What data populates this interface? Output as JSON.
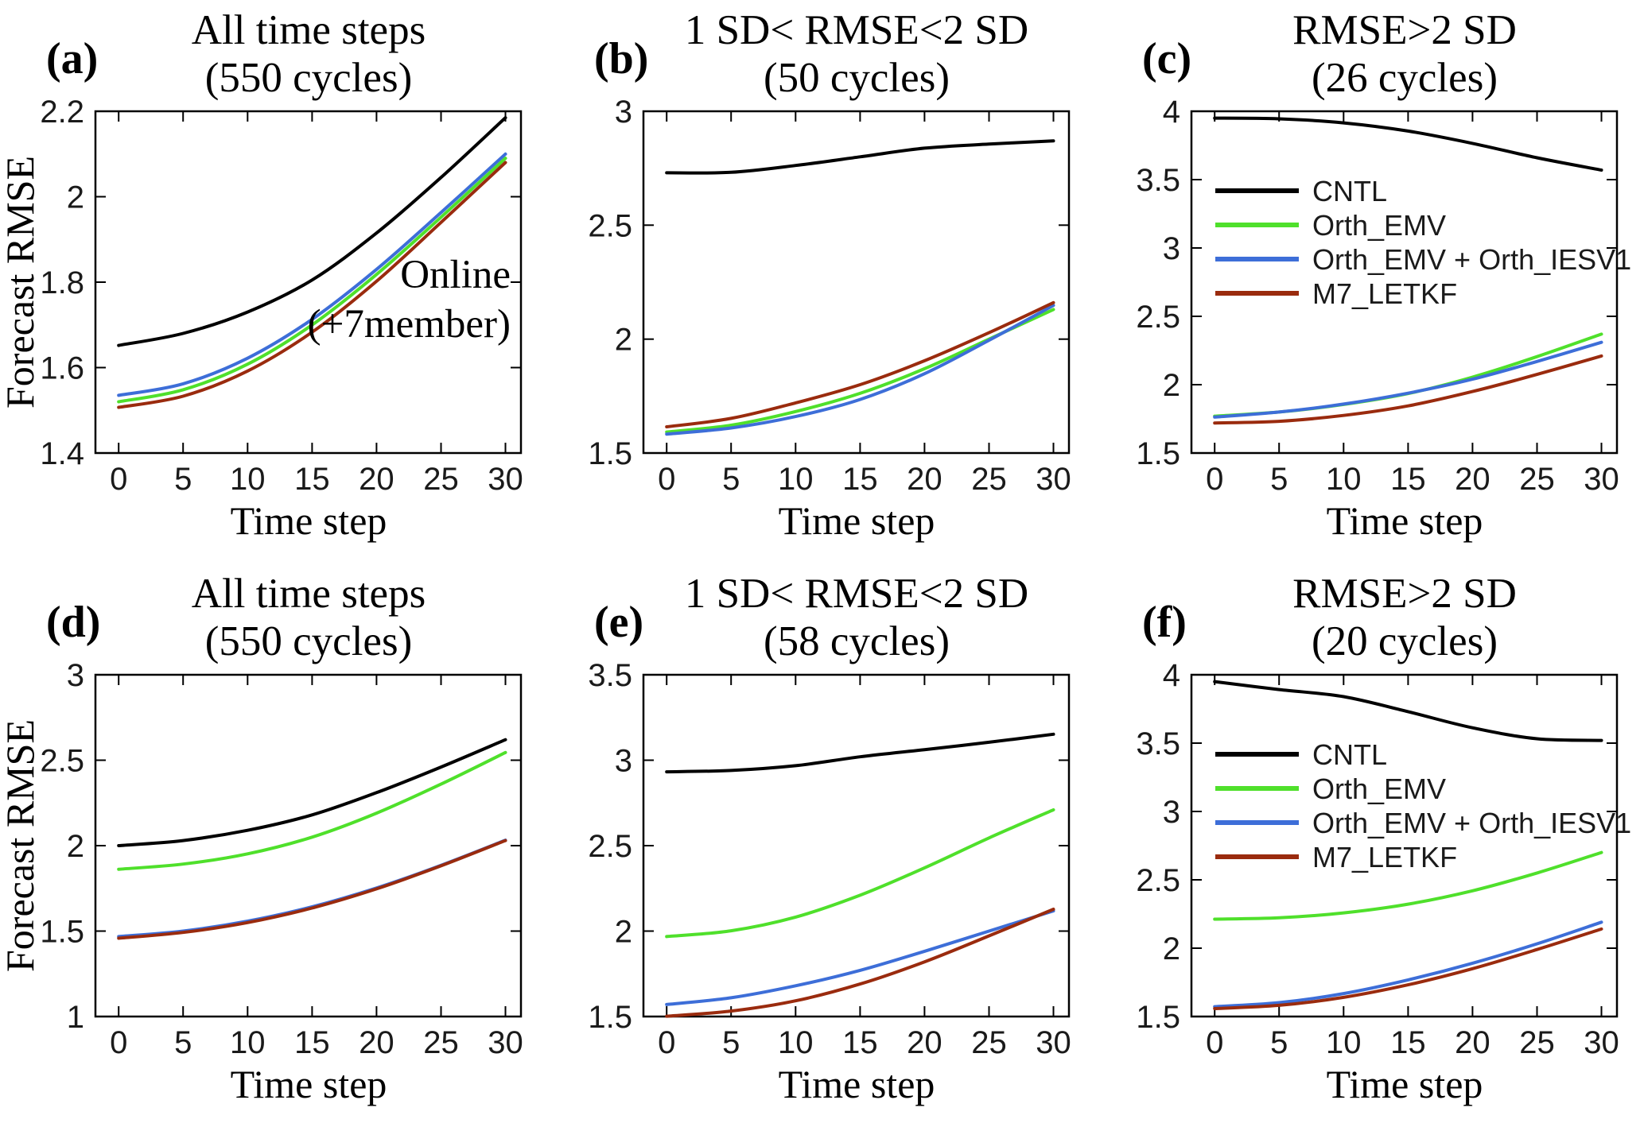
{
  "palette": {
    "black": "#000000",
    "green": "#4fe02b",
    "blue": "#3d6ed8",
    "red": "#9a2b0e",
    "axis": "#000000"
  },
  "figure": {
    "xlabel": "Time step",
    "ylabel": "Forecast RMSE",
    "annotation": [
      "Online",
      "(+7member)"
    ]
  },
  "chart_data": [
    {
      "type": "line",
      "panel": "(a)",
      "title_lines": [
        "All time steps",
        "(550 cycles)"
      ],
      "xlabel": "Time step",
      "ylabel": "Forecast RMSE",
      "x": [
        0,
        5,
        10,
        15,
        20,
        25,
        30
      ],
      "xlim": [
        -1.8,
        31.2
      ],
      "ylim": [
        1.4,
        2.2
      ],
      "xticks": [
        "0",
        "5",
        "10",
        "15",
        "20",
        "25",
        "30"
      ],
      "yticks": [
        "1.4",
        "1.6",
        "1.8",
        "2",
        "2.2"
      ],
      "grid": false,
      "legend": false,
      "annotation": [
        "Online",
        "(+7member)"
      ],
      "series": [
        {
          "name": "CNTL",
          "color": "black",
          "values": [
            1.652,
            1.68,
            1.73,
            1.805,
            1.915,
            2.045,
            2.185
          ]
        },
        {
          "name": "Orth_EMV",
          "color": "green",
          "values": [
            1.52,
            1.548,
            1.608,
            1.7,
            1.818,
            1.952,
            2.09
          ]
        },
        {
          "name": "Orth_EMV + Orth_IESV1",
          "color": "blue",
          "values": [
            1.535,
            1.562,
            1.622,
            1.713,
            1.83,
            1.963,
            2.1
          ]
        },
        {
          "name": "M7_LETKF",
          "color": "red",
          "values": [
            1.507,
            1.533,
            1.592,
            1.683,
            1.802,
            1.94,
            2.08
          ]
        }
      ]
    },
    {
      "type": "line",
      "panel": "(b)",
      "title_lines": [
        "1 SD< RMSE<2 SD",
        "(50 cycles)"
      ],
      "xlabel": "Time step",
      "ylabel": "",
      "x": [
        0,
        5,
        10,
        15,
        20,
        25,
        30
      ],
      "xlim": [
        -1.8,
        31.2
      ],
      "ylim": [
        1.5,
        3
      ],
      "xticks": [
        "0",
        "5",
        "10",
        "15",
        "20",
        "25",
        "30"
      ],
      "yticks": [
        "1.5",
        "2",
        "2.5",
        "3"
      ],
      "grid": false,
      "legend": false,
      "series": [
        {
          "name": "CNTL",
          "color": "black",
          "values": [
            2.73,
            2.732,
            2.762,
            2.8,
            2.838,
            2.856,
            2.87
          ]
        },
        {
          "name": "Orth_EMV",
          "color": "green",
          "values": [
            1.592,
            1.622,
            1.682,
            1.762,
            1.87,
            2.0,
            2.13
          ]
        },
        {
          "name": "Orth_EMV + Orth_IESV1",
          "color": "blue",
          "values": [
            1.583,
            1.61,
            1.66,
            1.735,
            1.848,
            1.995,
            2.148
          ]
        },
        {
          "name": "M7_LETKF",
          "color": "red",
          "values": [
            1.615,
            1.652,
            1.72,
            1.8,
            1.905,
            2.028,
            2.16
          ]
        }
      ]
    },
    {
      "type": "line",
      "panel": "(c)",
      "title_lines": [
        "RMSE>2 SD",
        "(26 cycles)"
      ],
      "xlabel": "Time step",
      "ylabel": "",
      "x": [
        0,
        5,
        10,
        15,
        20,
        25,
        30
      ],
      "xlim": [
        -1.8,
        31.2
      ],
      "ylim": [
        1.5,
        4
      ],
      "xticks": [
        "0",
        "5",
        "10",
        "15",
        "20",
        "25",
        "30"
      ],
      "yticks": [
        "1.5",
        "2",
        "2.5",
        "3",
        "3.5",
        "4"
      ],
      "grid": false,
      "legend": true,
      "series": [
        {
          "name": "CNTL",
          "color": "black",
          "values": [
            3.95,
            3.945,
            3.915,
            3.855,
            3.765,
            3.66,
            3.57
          ]
        },
        {
          "name": "Orth_EMV",
          "color": "green",
          "values": [
            1.77,
            1.8,
            1.855,
            1.935,
            2.055,
            2.205,
            2.37
          ]
        },
        {
          "name": "Orth_EMV + Orth_IESV1",
          "color": "blue",
          "values": [
            1.763,
            1.8,
            1.858,
            1.938,
            2.04,
            2.17,
            2.31
          ]
        },
        {
          "name": "M7_LETKF",
          "color": "red",
          "values": [
            1.72,
            1.732,
            1.775,
            1.845,
            1.95,
            2.075,
            2.21
          ]
        }
      ]
    },
    {
      "type": "line",
      "panel": "(d)",
      "title_lines": [
        "All time steps",
        "(550 cycles)"
      ],
      "xlabel": "Time step",
      "ylabel": "Forecast RMSE",
      "x": [
        0,
        5,
        10,
        15,
        20,
        25,
        30
      ],
      "xlim": [
        -1.8,
        31.2
      ],
      "ylim": [
        1,
        3
      ],
      "xticks": [
        "0",
        "5",
        "10",
        "15",
        "20",
        "25",
        "30"
      ],
      "yticks": [
        "1",
        "1.5",
        "2",
        "2.5",
        "3"
      ],
      "grid": false,
      "legend": false,
      "series": [
        {
          "name": "CNTL",
          "color": "black",
          "values": [
            2.0,
            2.03,
            2.09,
            2.18,
            2.31,
            2.46,
            2.62
          ]
        },
        {
          "name": "Orth_EMV",
          "color": "green",
          "values": [
            1.862,
            1.892,
            1.952,
            2.05,
            2.19,
            2.36,
            2.545
          ]
        },
        {
          "name": "Orth_EMV + Orth_IESV1",
          "color": "blue",
          "values": [
            1.468,
            1.5,
            1.558,
            1.642,
            1.752,
            1.885,
            2.032
          ]
        },
        {
          "name": "M7_LETKF",
          "color": "red",
          "values": [
            1.458,
            1.492,
            1.55,
            1.635,
            1.747,
            1.882,
            2.03
          ]
        }
      ]
    },
    {
      "type": "line",
      "panel": "(e)",
      "title_lines": [
        "1 SD< RMSE<2 SD",
        "(58 cycles)"
      ],
      "xlabel": "Time step",
      "ylabel": "",
      "x": [
        0,
        5,
        10,
        15,
        20,
        25,
        30
      ],
      "xlim": [
        -1.8,
        31.2
      ],
      "ylim": [
        1.5,
        3.5
      ],
      "xticks": [
        "0",
        "5",
        "10",
        "15",
        "20",
        "25",
        "30"
      ],
      "yticks": [
        "1.5",
        "2",
        "2.5",
        "3",
        "3.5"
      ],
      "grid": false,
      "legend": false,
      "series": [
        {
          "name": "CNTL",
          "color": "black",
          "values": [
            2.932,
            2.94,
            2.968,
            3.02,
            3.062,
            3.105,
            3.152
          ]
        },
        {
          "name": "Orth_EMV",
          "color": "green",
          "values": [
            1.968,
            2.002,
            2.082,
            2.21,
            2.37,
            2.545,
            2.71
          ]
        },
        {
          "name": "Orth_EMV + Orth_IESV1",
          "color": "blue",
          "values": [
            1.57,
            1.61,
            1.68,
            1.77,
            1.882,
            2.0,
            2.118
          ]
        },
        {
          "name": "M7_LETKF",
          "color": "red",
          "values": [
            1.502,
            1.532,
            1.592,
            1.69,
            1.82,
            1.972,
            2.128
          ]
        }
      ]
    },
    {
      "type": "line",
      "panel": "(f)",
      "title_lines": [
        "RMSE>2 SD",
        "(20 cycles)"
      ],
      "xlabel": "Time step",
      "ylabel": "",
      "x": [
        0,
        5,
        10,
        15,
        20,
        25,
        30
      ],
      "xlim": [
        -1.8,
        31.2
      ],
      "ylim": [
        1.5,
        4
      ],
      "xticks": [
        "0",
        "5",
        "10",
        "15",
        "20",
        "25",
        "30"
      ],
      "yticks": [
        "1.5",
        "2",
        "2.5",
        "3",
        "3.5",
        "4"
      ],
      "grid": false,
      "legend": true,
      "series": [
        {
          "name": "CNTL",
          "color": "black",
          "values": [
            3.95,
            3.892,
            3.84,
            3.73,
            3.612,
            3.532,
            3.52
          ]
        },
        {
          "name": "Orth_EMV",
          "color": "green",
          "values": [
            2.212,
            2.222,
            2.258,
            2.322,
            2.42,
            2.55,
            2.7
          ]
        },
        {
          "name": "Orth_EMV + Orth_IESV1",
          "color": "blue",
          "values": [
            1.572,
            1.602,
            1.668,
            1.768,
            1.89,
            2.032,
            2.19
          ]
        },
        {
          "name": "M7_LETKF",
          "color": "red",
          "values": [
            1.558,
            1.582,
            1.64,
            1.732,
            1.85,
            1.99,
            2.14
          ]
        }
      ]
    }
  ]
}
